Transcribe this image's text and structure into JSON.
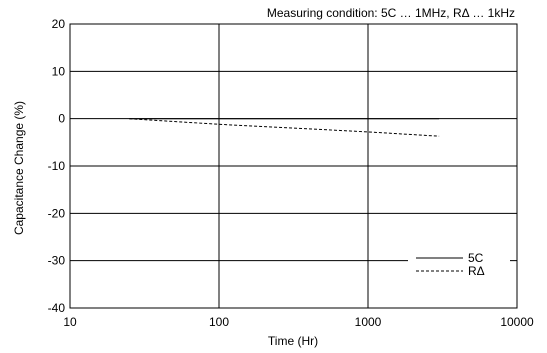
{
  "chart_data": {
    "type": "line",
    "annotation": "Measuring condition: 5C … 1MHz, RΔ … 1kHz",
    "xlabel": "Time (Hr)",
    "ylabel": "Capacitance Change (%)",
    "xscale": "log",
    "xlim": [
      10,
      10000
    ],
    "ylim": [
      -40,
      20
    ],
    "x_ticks": [
      10,
      100,
      1000,
      10000
    ],
    "x_tick_labels": [
      "10",
      "100",
      "1000",
      "10000"
    ],
    "y_ticks": [
      20,
      10,
      0,
      -10,
      -20,
      -30,
      -40
    ],
    "y_tick_labels": [
      "20",
      "10",
      "0",
      "-10",
      "-20",
      "-30",
      "-40"
    ],
    "grid": true,
    "legend_position": "bottom-right",
    "series": [
      {
        "name": "5C",
        "style": "solid",
        "color": "#000000",
        "x": [
          25,
          3000
        ],
        "y": [
          0,
          0
        ]
      },
      {
        "name": "RΔ",
        "style": "dashed",
        "color": "#000000",
        "x": [
          25,
          100,
          1000,
          3000
        ],
        "y": [
          0,
          -1.2,
          -2.8,
          -3.7
        ]
      }
    ]
  }
}
